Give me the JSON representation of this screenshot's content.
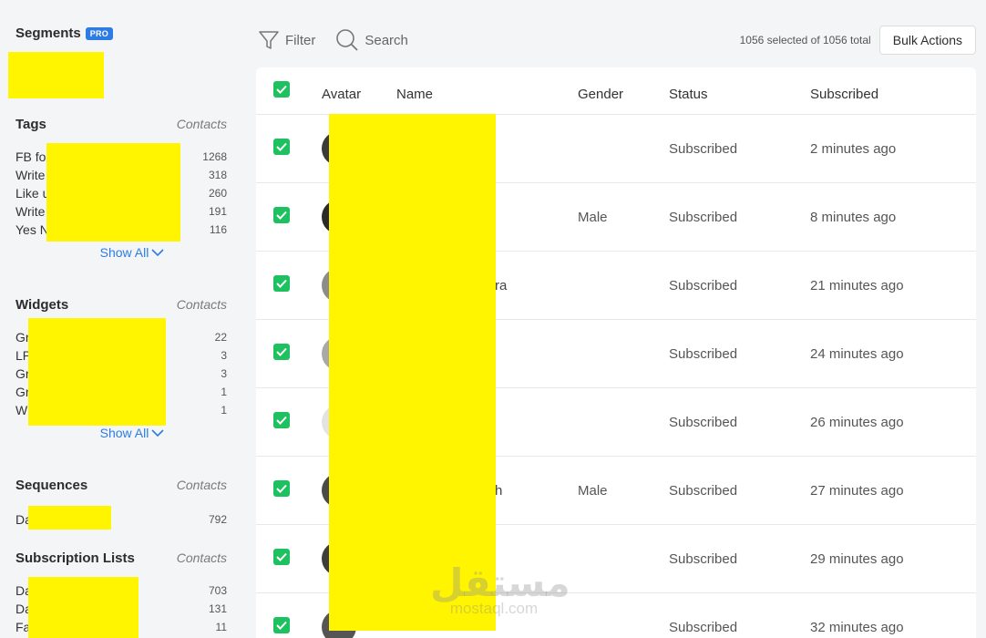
{
  "sidebar": {
    "segments": {
      "title": "Segments",
      "badge": "PRO"
    },
    "tags": {
      "title": "Tags",
      "contacts_label": "Contacts",
      "items": [
        {
          "label": "FB fo",
          "count": "1268"
        },
        {
          "label": "Write",
          "count": "318"
        },
        {
          "label": "Like u",
          "count": "260"
        },
        {
          "label": "Write",
          "count": "191"
        },
        {
          "label": "Yes N",
          "count": "116"
        }
      ],
      "show_all": "Show All"
    },
    "widgets": {
      "title": "Widgets",
      "contacts_label": "Contacts",
      "items": [
        {
          "label": "Gr",
          "count": "22"
        },
        {
          "label": "LP",
          "count": "3"
        },
        {
          "label": "Gr",
          "count": "3"
        },
        {
          "label": "Gr",
          "count": "1"
        },
        {
          "label": "W",
          "count": "1"
        }
      ],
      "show_all": "Show All"
    },
    "sequences": {
      "title": "Sequences",
      "contacts_label": "Contacts",
      "items": [
        {
          "label": "Da",
          "count": "792"
        }
      ]
    },
    "subscription_lists": {
      "title": "Subscription Lists",
      "contacts_label": "Contacts",
      "items": [
        {
          "label": "Da",
          "count": "703"
        },
        {
          "label": "Da",
          "count": "131"
        },
        {
          "label": "Fa",
          "count": "11"
        }
      ]
    }
  },
  "toolbar": {
    "filter_label": "Filter",
    "search_label": "Search",
    "selected_info": "1056 selected of 1056 total",
    "bulk_actions_label": "Bulk Actions"
  },
  "table": {
    "columns": {
      "avatar": "Avatar",
      "name": "Name",
      "gender": "Gender",
      "status": "Status",
      "subscribed": "Subscribed"
    },
    "rows": [
      {
        "name": "",
        "gender": "",
        "status": "Subscribed",
        "subscribed": "2 minutes ago"
      },
      {
        "name": "",
        "gender": "Male",
        "status": "Subscribed",
        "subscribed": "8 minutes ago"
      },
      {
        "name": "ra",
        "gender": "",
        "status": "Subscribed",
        "subscribed": "21 minutes ago"
      },
      {
        "name": "",
        "gender": "",
        "status": "Subscribed",
        "subscribed": "24 minutes ago"
      },
      {
        "name": "",
        "gender": "",
        "status": "Subscribed",
        "subscribed": "26 minutes ago"
      },
      {
        "name": "h",
        "gender": "Male",
        "status": "Subscribed",
        "subscribed": "27 minutes ago"
      },
      {
        "name": "",
        "gender": "",
        "status": "Subscribed",
        "subscribed": "29 minutes ago"
      },
      {
        "name": "",
        "gender": "",
        "status": "Subscribed",
        "subscribed": "32 minutes ago"
      }
    ]
  },
  "watermark": {
    "arabic": "مستقل",
    "latin": "mostaql.com"
  },
  "colors": {
    "accent": "#2d7be5",
    "checkbox": "#1ec15f",
    "redaction": "#fff500"
  }
}
